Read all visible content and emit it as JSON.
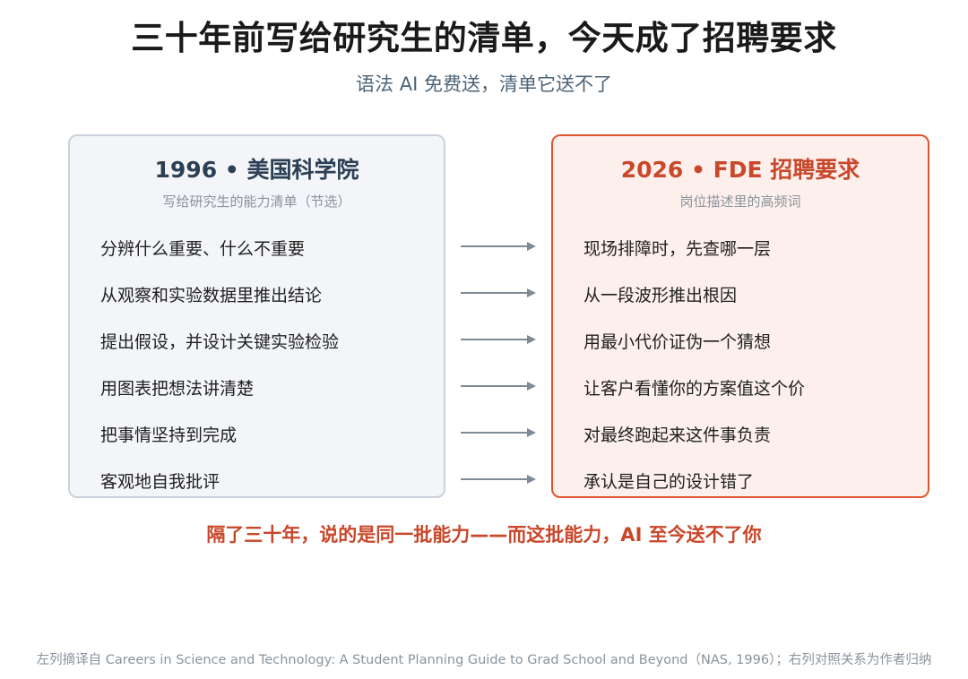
{
  "title": "三十年前写给研究生的清单，今天成了招聘要求",
  "subtitle": "语法 AI 免费送，清单它送不了",
  "left_panel": {
    "title": "1996 • 美国科学院",
    "subtitle": "写给研究生的能力清单（节选）",
    "items": [
      "分辨什么重要、什么不重要",
      "从观察和实验数据里推出结论",
      "提出假设，并设计关键实验检验",
      "用图表把想法讲清楚",
      "把事情坚持到完成",
      "客观地自我批评"
    ]
  },
  "right_panel": {
    "title": "2026 • FDE 招聘要求",
    "subtitle": "岗位描述里的高频词",
    "items": [
      "现场排障时，先查哪一层",
      "从一段波形推出根因",
      "用最小代价证伪一个猜想",
      "让客户看懂你的方案值这个价",
      "对最终跑起来这件事负责",
      "承认是自己的设计错了"
    ]
  },
  "conclusion": "隔了三十年，说的是同一批能力——而这批能力，AI 至今送不了你",
  "footnote": "左列摘译自 Careers in Science and Technology: A Student Planning Guide to Grad School and Beyond（NAS, 1996）；右列对照关系为作者归纳",
  "colors": {
    "accent": "#c9472a",
    "left_border": "#cad1da",
    "right_border": "#e0552f",
    "arrow": "#7f8a96"
  }
}
